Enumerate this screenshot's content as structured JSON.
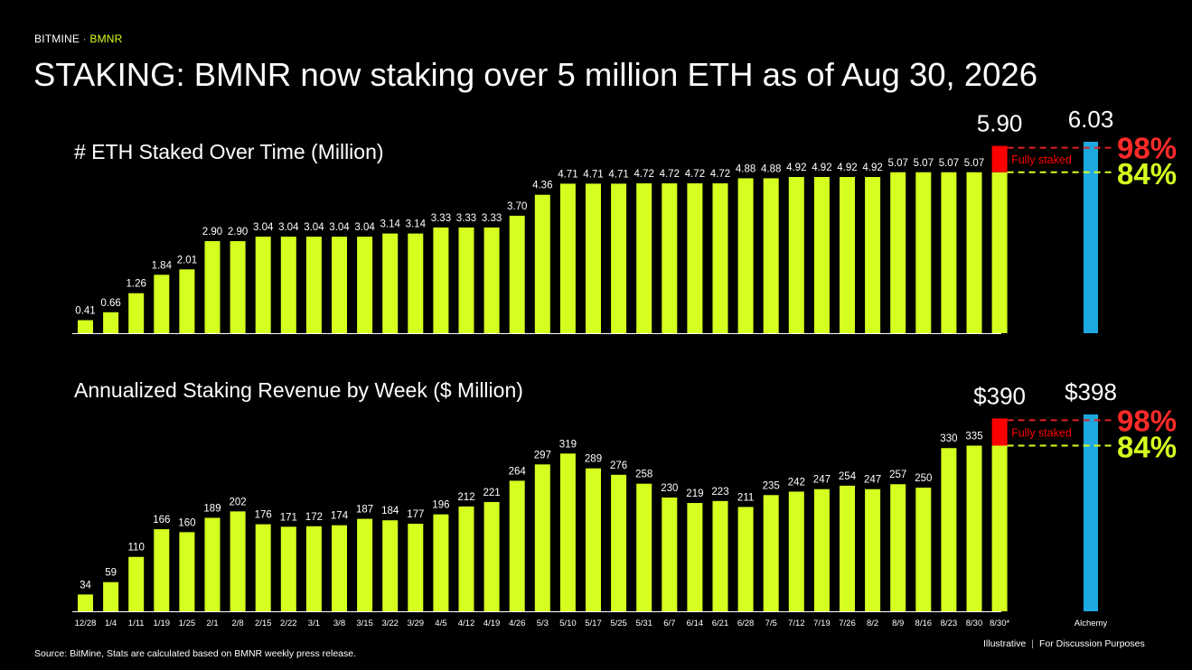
{
  "header": {
    "brand": "BITMINE",
    "separator": "·",
    "ticker": "BMNR",
    "title": "STAKING: BMNR now staking over 5 million ETH as of Aug 30, 2026"
  },
  "footer": {
    "source": "Source: BitMine, Stats are calculated based on BMNR weekly press release.",
    "illustrative": "Illustrative",
    "divider": "|",
    "discussion": "For Discussion Purposes"
  },
  "colors": {
    "bar": "#d4ff1f",
    "fully_staked": "#ff0000",
    "alchemy": "#1ea8e0",
    "pct_high": "#ff2a2a",
    "pct_low": "#d4ff1f"
  },
  "chart_data": [
    {
      "type": "bar",
      "title": "# ETH Staked Over Time (Million)",
      "categories": [
        "12/28",
        "1/4",
        "1/11",
        "1/19",
        "1/25",
        "2/1",
        "2/8",
        "2/15",
        "2/22",
        "3/1",
        "3/8",
        "3/15",
        "3/22",
        "3/29",
        "4/5",
        "4/12",
        "4/19",
        "4/26",
        "5/3",
        "5/10",
        "5/17",
        "5/25",
        "5/31",
        "6/7",
        "6/14",
        "6/21",
        "6/28",
        "7/5",
        "7/12",
        "7/19",
        "7/26",
        "8/2",
        "8/9",
        "8/16",
        "8/23",
        "8/30",
        "8/30*"
      ],
      "values": [
        0.41,
        0.66,
        1.26,
        1.84,
        2.01,
        2.9,
        2.9,
        3.04,
        3.04,
        3.04,
        3.04,
        3.04,
        3.14,
        3.14,
        3.33,
        3.33,
        3.33,
        3.7,
        4.36,
        4.71,
        4.71,
        4.71,
        4.72,
        4.72,
        4.72,
        4.72,
        4.88,
        4.88,
        4.92,
        4.92,
        4.92,
        4.92,
        5.07,
        5.07,
        5.07,
        5.07,
        5.07
      ],
      "labels": [
        "0.41",
        "0.66",
        "1.26",
        "1.84",
        "2.01",
        "2.90",
        "2.90",
        "3.04",
        "3.04",
        "3.04",
        "3.04",
        "3.04",
        "3.14",
        "3.14",
        "3.33",
        "3.33",
        "3.33",
        "3.70",
        "4.36",
        "4.71",
        "4.71",
        "4.71",
        "4.72",
        "4.72",
        "4.72",
        "4.72",
        "4.88",
        "4.88",
        "4.92",
        "4.92",
        "4.92",
        "4.92",
        "5.07",
        "5.07",
        "5.07",
        "5.07",
        ""
      ],
      "fully_staked_value": 5.9,
      "fully_staked_label": "5.90",
      "fully_staked_text": "Fully staked",
      "alchemy_value": 6.03,
      "alchemy_label": "6.03",
      "pct_high": "98%",
      "pct_low": "84%",
      "ylim": [
        0,
        6.03
      ]
    },
    {
      "type": "bar",
      "title": "Annualized Staking Revenue by Week ($ Million)",
      "categories": [
        "12/28",
        "1/4",
        "1/11",
        "1/19",
        "1/25",
        "2/1",
        "2/8",
        "2/15",
        "2/22",
        "3/1",
        "3/8",
        "3/15",
        "3/22",
        "3/29",
        "4/5",
        "4/12",
        "4/19",
        "4/26",
        "5/3",
        "5/10",
        "5/17",
        "5/25",
        "5/31",
        "6/7",
        "6/14",
        "6/21",
        "6/28",
        "7/5",
        "7/12",
        "7/19",
        "7/26",
        "8/2",
        "8/9",
        "8/16",
        "8/23",
        "8/30",
        "8/30*"
      ],
      "values": [
        34,
        59,
        110,
        166,
        160,
        189,
        202,
        176,
        171,
        172,
        174,
        187,
        184,
        177,
        196,
        212,
        221,
        264,
        297,
        319,
        289,
        276,
        258,
        230,
        219,
        223,
        211,
        235,
        242,
        247,
        254,
        247,
        257,
        250,
        330,
        335,
        335
      ],
      "labels": [
        "34",
        "59",
        "110",
        "166",
        "160",
        "189",
        "202",
        "176",
        "171",
        "172",
        "174",
        "187",
        "184",
        "177",
        "196",
        "212",
        "221",
        "264",
        "297",
        "319",
        "289",
        "276",
        "258",
        "230",
        "219",
        "223",
        "211",
        "235",
        "242",
        "247",
        "254",
        "247",
        "257",
        "250",
        "330",
        "335",
        ""
      ],
      "fully_staked_value": 390,
      "fully_staked_label": "$390",
      "fully_staked_text": "Fully staked",
      "alchemy_value": 398,
      "alchemy_label": "$398",
      "alchemy_category": "Alchemy",
      "pct_high": "98%",
      "pct_low": "84%",
      "ylim": [
        0,
        398
      ]
    }
  ]
}
